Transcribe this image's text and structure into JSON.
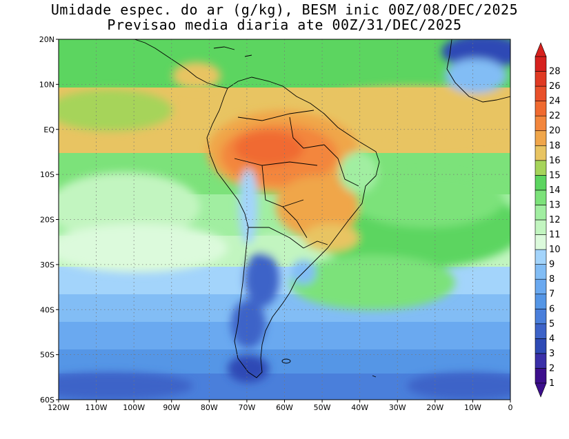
{
  "title_line1": "Umidade espec. do ar (g/kg), BESM inic 00Z/08/DEC/2025",
  "title_line2": "Previsao media diaria ate 00Z/31/DEC/2025",
  "map": {
    "lon_range": [
      -120,
      0
    ],
    "lat_range": [
      -60,
      20
    ],
    "lon_ticks": [
      {
        "value": -120,
        "label": "120W"
      },
      {
        "value": -110,
        "label": "110W"
      },
      {
        "value": -100,
        "label": "100W"
      },
      {
        "value": -90,
        "label": "90W"
      },
      {
        "value": -80,
        "label": "80W"
      },
      {
        "value": -70,
        "label": "70W"
      },
      {
        "value": -60,
        "label": "60W"
      },
      {
        "value": -50,
        "label": "50W"
      },
      {
        "value": -40,
        "label": "40W"
      },
      {
        "value": -30,
        "label": "30W"
      },
      {
        "value": -20,
        "label": "20W"
      },
      {
        "value": -10,
        "label": "10W"
      },
      {
        "value": 0,
        "label": "0"
      }
    ],
    "lat_ticks": [
      {
        "value": 20,
        "label": "20N"
      },
      {
        "value": 10,
        "label": "10N"
      },
      {
        "value": 0,
        "label": "EQ"
      },
      {
        "value": -10,
        "label": "10S"
      },
      {
        "value": -20,
        "label": "20S"
      },
      {
        "value": -30,
        "label": "30S"
      },
      {
        "value": -40,
        "label": "40S"
      },
      {
        "value": -50,
        "label": "50S"
      },
      {
        "value": -60,
        "label": "60S"
      }
    ],
    "grid": "dotted"
  },
  "colorbar": {
    "levels": [
      {
        "label": "1",
        "color": "#3c0f8c"
      },
      {
        "label": "2",
        "color": "#3a2fa8"
      },
      {
        "label": "3",
        "color": "#2e4ab5"
      },
      {
        "label": "4",
        "color": "#3d63c8"
      },
      {
        "label": "5",
        "color": "#4a7fdb"
      },
      {
        "label": "6",
        "color": "#5596e6"
      },
      {
        "label": "7",
        "color": "#6aa9f0"
      },
      {
        "label": "8",
        "color": "#82bdf5"
      },
      {
        "label": "9",
        "color": "#a3d4fb"
      },
      {
        "label": "10",
        "color": "#dcfadc"
      },
      {
        "label": "11",
        "color": "#c2f5c0"
      },
      {
        "label": "12",
        "color": "#a1eea1"
      },
      {
        "label": "13",
        "color": "#7ce27a"
      },
      {
        "label": "14",
        "color": "#5cd560"
      },
      {
        "label": "15",
        "color": "#a6d45a"
      },
      {
        "label": "16",
        "color": "#e8c462"
      },
      {
        "label": "18",
        "color": "#f0a64a"
      },
      {
        "label": "20",
        "color": "#f3863c"
      },
      {
        "label": "22",
        "color": "#f06a30"
      },
      {
        "label": "24",
        "color": "#e9502a"
      },
      {
        "label": "26",
        "color": "#e03a23"
      },
      {
        "label": "28",
        "color": "#d6211e"
      }
    ]
  }
}
